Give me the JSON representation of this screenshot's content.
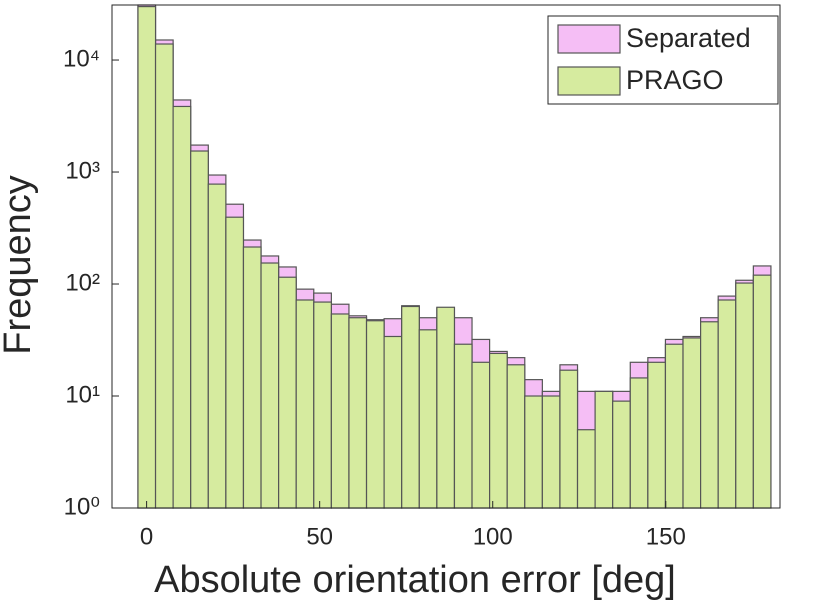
{
  "chart_data": {
    "type": "histogram",
    "xlabel": "Absolute orientation error [deg]",
    "ylabel": "Frequency",
    "bins": [
      -2.5,
      2.58,
      7.66,
      12.74,
      17.82,
      22.9,
      27.98,
      33.06,
      38.14,
      43.22,
      48.3,
      53.38,
      58.46,
      63.54,
      68.62,
      73.7,
      78.78,
      83.86,
      88.94,
      94.02,
      99.1,
      104.18,
      109.26,
      114.34,
      119.42,
      124.5,
      129.58,
      134.66,
      139.74,
      144.82,
      149.9,
      154.98,
      160.06,
      165.14,
      170.22,
      175.3,
      180.38
    ],
    "series": [
      {
        "name": "Separated",
        "color": "#f5bef5",
        "values": [
          31000,
          15100,
          4400,
          1740,
          940,
          516,
          247,
          178,
          142,
          90,
          83,
          66,
          52,
          48,
          49,
          64,
          50,
          61,
          50,
          32,
          25,
          22,
          14,
          11,
          19,
          11,
          11,
          11,
          20,
          22,
          32,
          34,
          50,
          78,
          108,
          145
        ]
      },
      {
        "name": "PRAGO",
        "color": "#d6eb9f",
        "values": [
          30000,
          13900,
          3850,
          1540,
          780,
          395,
          214,
          154,
          115,
          72,
          69,
          54,
          50,
          47,
          34,
          63,
          39,
          62,
          29,
          20,
          24,
          19,
          10,
          10,
          17,
          5,
          11,
          9,
          14.5,
          20,
          29,
          33,
          46,
          72,
          102,
          120
        ]
      }
    ],
    "xlim": [
      -10,
      183
    ],
    "ylim": [
      1,
      31000
    ],
    "xticks": [
      0,
      50,
      100,
      150
    ],
    "yticks": [
      {
        "value": 1,
        "label": "10⁰"
      },
      {
        "value": 10,
        "label": "10¹"
      },
      {
        "value": 100,
        "label": "10²"
      },
      {
        "value": 1000,
        "label": "10³"
      },
      {
        "value": 10000,
        "label": "10⁴"
      }
    ],
    "log_y": true,
    "legend": "upper right"
  }
}
